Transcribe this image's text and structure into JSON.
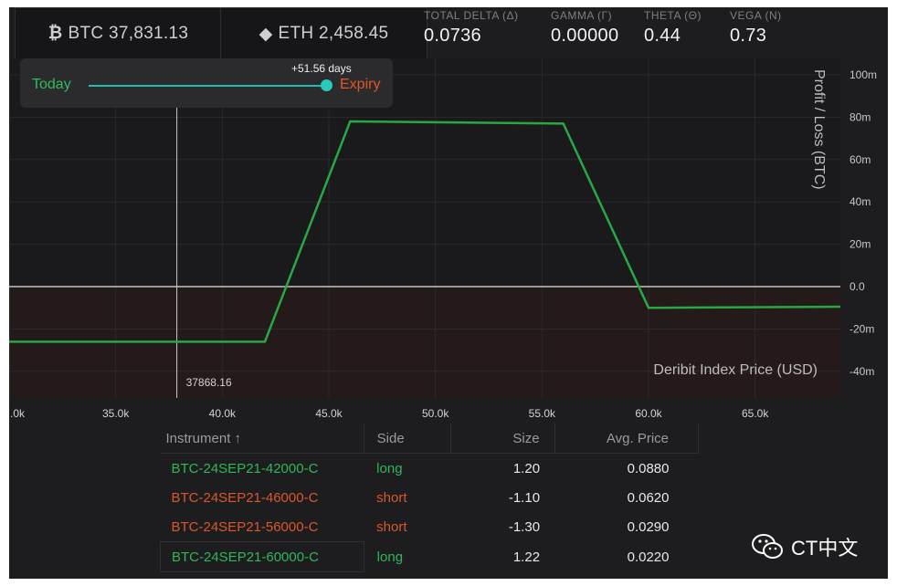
{
  "tickers": [
    {
      "icon": "bitcoin-icon",
      "glyph": "₿",
      "label": "BTC 37,831.13"
    },
    {
      "icon": "ethereum-icon",
      "glyph": "◆",
      "label": "ETH 2,458.45"
    }
  ],
  "greeks": [
    {
      "label": "TOTAL DELTA (Δ)",
      "value": "0.0736"
    },
    {
      "label": "GAMMA (Γ)",
      "value": "0.00000"
    },
    {
      "label": "THETA (Θ)",
      "value": "0.44"
    },
    {
      "label": "VEGA (N)",
      "value": "0.73"
    }
  ],
  "slider": {
    "start_label": "Today",
    "end_label": "Expiry",
    "value_label": "+51.56 days",
    "position": 1.0
  },
  "chart_data": {
    "type": "line",
    "ylabel": "Profit / Loss   (BTC)",
    "xlabel": "Deribit Index Price   (USD)",
    "xlim": [
      30000,
      69000
    ],
    "ylim": [
      -50,
      100
    ],
    "x_ticks": [
      ".0k",
      "35.0k",
      "40.0k",
      "45.0k",
      "50.0k",
      "55.0k",
      "60.0k",
      "65.0k"
    ],
    "x_tick_values": [
      30000,
      35000,
      40000,
      45000,
      50000,
      55000,
      60000,
      65000
    ],
    "y_ticks": [
      "100m",
      "80m",
      "60m",
      "40m",
      "20m",
      "0.0",
      "-20m",
      "-40m"
    ],
    "y_tick_values": [
      100,
      80,
      60,
      40,
      20,
      0,
      -20,
      -40
    ],
    "current_price_label": "37868.16",
    "current_price": 37868.16,
    "series": [
      {
        "x": [
          30000,
          42000,
          46000,
          56000,
          60000,
          69000
        ],
        "y": [
          -26,
          -26,
          78,
          77,
          -10,
          -9.5
        ]
      }
    ],
    "line_color": "#27a845",
    "zero_color": "#9a9a9a",
    "loss_fill": "#241a1a"
  },
  "table": {
    "headers": [
      "Instrument ↑",
      "Side",
      "Size",
      "Avg. Price"
    ],
    "rows": [
      {
        "instrument": "BTC-24SEP21-42000-C",
        "side": "long",
        "size": "1.20",
        "price": "0.0880"
      },
      {
        "instrument": "BTC-24SEP21-46000-C",
        "side": "short",
        "size": "-1.10",
        "price": "0.0620"
      },
      {
        "instrument": "BTC-24SEP21-56000-C",
        "side": "short",
        "size": "-1.30",
        "price": "0.0290"
      },
      {
        "instrument": "BTC-24SEP21-60000-C",
        "side": "long",
        "size": "1.22",
        "price": "0.0220"
      }
    ]
  },
  "watermark": {
    "icon": "wechat-icon",
    "label": "CT中文"
  }
}
